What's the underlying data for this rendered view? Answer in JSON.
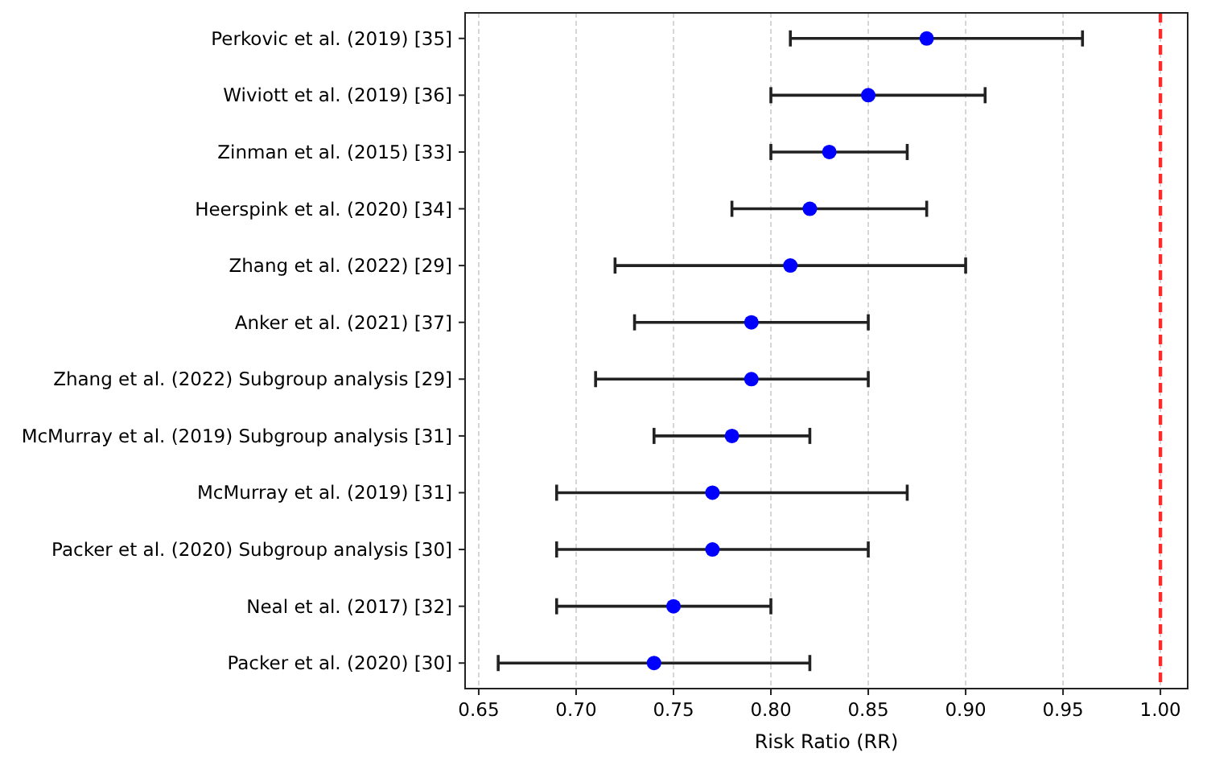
{
  "chart_data": {
    "type": "scatter",
    "orientation": "horizontal",
    "xlabel": "Risk Ratio (RR)",
    "categories": [
      "Perkovic et al. (2019) [35]",
      "Wiviott et al. (2019) [36]",
      "Zinman et al. (2015) [33]",
      "Heerspink et al. (2020) [34]",
      "Zhang et al. (2022) [29]",
      "Anker et al. (2021) [37]",
      "Zhang et al. (2022) Subgroup analysis [29]",
      "McMurray et al. (2019) Subgroup analysis [31]",
      "McMurray et al. (2019) [31]",
      "Packer et al. (2020) Subgroup analysis [30]",
      "Neal et al. (2017) [32]",
      "Packer et al. (2020) [30]"
    ],
    "series": [
      {
        "color": "#0000ff",
        "values": [
          0.88,
          0.85,
          0.83,
          0.82,
          0.81,
          0.79,
          0.79,
          0.78,
          0.77,
          0.77,
          0.75,
          0.74
        ],
        "errors": [
          [
            0.81,
            0.96
          ],
          [
            0.8,
            0.91
          ],
          [
            0.8,
            0.87
          ],
          [
            0.78,
            0.88
          ],
          [
            0.72,
            0.9
          ],
          [
            0.73,
            0.85
          ],
          [
            0.71,
            0.85
          ],
          [
            0.74,
            0.82
          ],
          [
            0.69,
            0.87
          ],
          [
            0.69,
            0.85
          ],
          [
            0.69,
            0.8
          ],
          [
            0.66,
            0.82
          ]
        ]
      }
    ],
    "xlim": [
      0.643,
      1.014
    ],
    "xticks": [
      {
        "value": 0.65,
        "label": "0.65"
      },
      {
        "value": 0.7,
        "label": "0.70"
      },
      {
        "value": 0.75,
        "label": "0.75"
      },
      {
        "value": 0.8,
        "label": "0.80"
      },
      {
        "value": 0.85,
        "label": "0.85"
      },
      {
        "value": 0.9,
        "label": "0.90"
      },
      {
        "value": 0.95,
        "label": "0.95"
      },
      {
        "value": 1.0,
        "label": "1.00"
      }
    ],
    "ref_lines": [
      {
        "axis": "x",
        "value": 1.0,
        "color": "#ff2a2a",
        "line_style": "dashed"
      }
    ],
    "grid": "x",
    "marker": "circle"
  }
}
